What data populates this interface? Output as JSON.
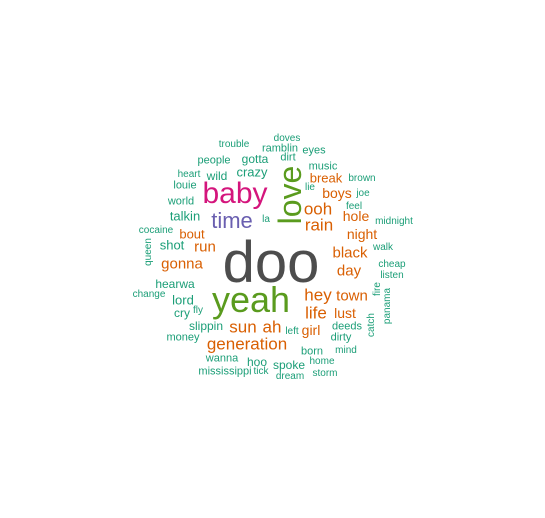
{
  "palette": {
    "dark": "#4d4d4d",
    "green": "#5a9b1e",
    "magenta": "#d4157c",
    "purple": "#6a5fb0",
    "orange": "#d95f02",
    "teal": "#1b9e77"
  },
  "words": [
    {
      "text": "doo",
      "color": "dark"
    },
    {
      "text": "yeah",
      "color": "green"
    },
    {
      "text": "baby",
      "color": "magenta"
    },
    {
      "text": "love",
      "color": "green"
    },
    {
      "text": "time",
      "color": "purple"
    },
    {
      "text": "generation",
      "color": "orange"
    },
    {
      "text": "sun",
      "color": "orange"
    },
    {
      "text": "ah",
      "color": "orange"
    },
    {
      "text": "hey",
      "color": "orange"
    },
    {
      "text": "life",
      "color": "orange"
    },
    {
      "text": "town",
      "color": "orange"
    },
    {
      "text": "rain",
      "color": "orange"
    },
    {
      "text": "ooh",
      "color": "orange"
    },
    {
      "text": "black",
      "color": "orange"
    },
    {
      "text": "day",
      "color": "orange"
    },
    {
      "text": "night",
      "color": "orange"
    },
    {
      "text": "gonna",
      "color": "orange"
    },
    {
      "text": "run",
      "color": "orange"
    },
    {
      "text": "lust",
      "color": "orange"
    },
    {
      "text": "girl",
      "color": "orange"
    },
    {
      "text": "boys",
      "color": "orange"
    },
    {
      "text": "hole",
      "color": "orange"
    },
    {
      "text": "break",
      "color": "orange"
    },
    {
      "text": "bout",
      "color": "orange"
    },
    {
      "text": "shot",
      "color": "teal"
    },
    {
      "text": "talkin",
      "color": "teal"
    },
    {
      "text": "crazy",
      "color": "teal"
    },
    {
      "text": "gotta",
      "color": "teal"
    },
    {
      "text": "wild",
      "color": "teal"
    },
    {
      "text": "people",
      "color": "teal"
    },
    {
      "text": "trouble",
      "color": "teal"
    },
    {
      "text": "doves",
      "color": "teal"
    },
    {
      "text": "ramblin",
      "color": "teal"
    },
    {
      "text": "eyes",
      "color": "teal"
    },
    {
      "text": "dirt",
      "color": "teal"
    },
    {
      "text": "music",
      "color": "teal"
    },
    {
      "text": "heart",
      "color": "teal"
    },
    {
      "text": "louie",
      "color": "teal"
    },
    {
      "text": "world",
      "color": "teal"
    },
    {
      "text": "lie",
      "color": "teal"
    },
    {
      "text": "brown",
      "color": "teal"
    },
    {
      "text": "joe",
      "color": "teal"
    },
    {
      "text": "feel",
      "color": "teal"
    },
    {
      "text": "midnight",
      "color": "teal"
    },
    {
      "text": "la",
      "color": "teal"
    },
    {
      "text": "cocaine",
      "color": "teal"
    },
    {
      "text": "queen",
      "color": "teal"
    },
    {
      "text": "walk",
      "color": "teal"
    },
    {
      "text": "cheap",
      "color": "teal"
    },
    {
      "text": "listen",
      "color": "teal"
    },
    {
      "text": "fire",
      "color": "teal"
    },
    {
      "text": "panama",
      "color": "teal"
    },
    {
      "text": "hearwa",
      "color": "teal"
    },
    {
      "text": "change",
      "color": "teal"
    },
    {
      "text": "lord",
      "color": "teal"
    },
    {
      "text": "cry",
      "color": "teal"
    },
    {
      "text": "fly",
      "color": "teal"
    },
    {
      "text": "slippin",
      "color": "teal"
    },
    {
      "text": "money",
      "color": "teal"
    },
    {
      "text": "left",
      "color": "teal"
    },
    {
      "text": "deeds",
      "color": "teal"
    },
    {
      "text": "dirty",
      "color": "teal"
    },
    {
      "text": "catch",
      "color": "teal"
    },
    {
      "text": "born",
      "color": "teal"
    },
    {
      "text": "mind",
      "color": "teal"
    },
    {
      "text": "wanna",
      "color": "teal"
    },
    {
      "text": "hoo",
      "color": "teal"
    },
    {
      "text": "spoke",
      "color": "teal"
    },
    {
      "text": "home",
      "color": "teal"
    },
    {
      "text": "mississippi",
      "color": "teal"
    },
    {
      "text": "tick",
      "color": "teal"
    },
    {
      "text": "dream",
      "color": "teal"
    },
    {
      "text": "storm",
      "color": "teal"
    }
  ]
}
